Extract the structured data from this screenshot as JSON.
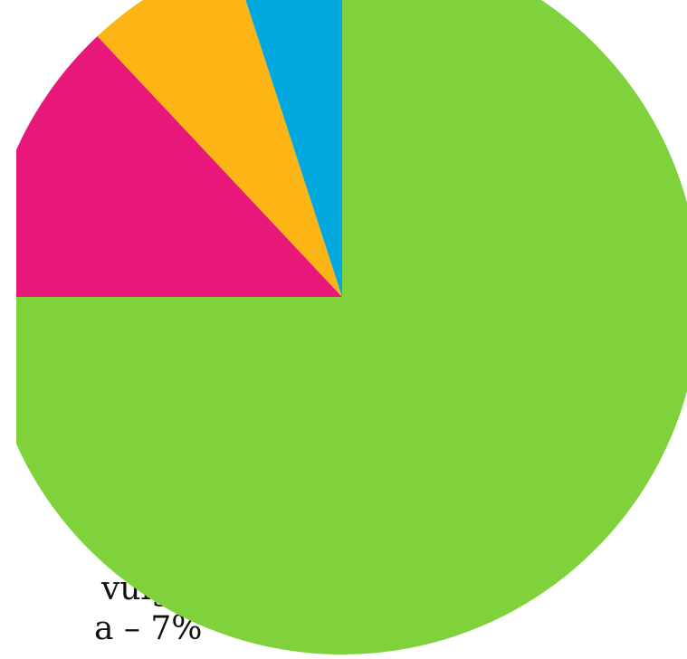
{
  "chart_data": {
    "type": "pie",
    "categories": [
      null,
      null,
      null,
      null
    ],
    "values": [
      75,
      13,
      7,
      5
    ],
    "colors": [
      "#80d23c",
      "#e8177a",
      "#fdb515",
      "#00a8de"
    ],
    "annotations": [
      "vulgar",
      "a – 7%"
    ]
  }
}
